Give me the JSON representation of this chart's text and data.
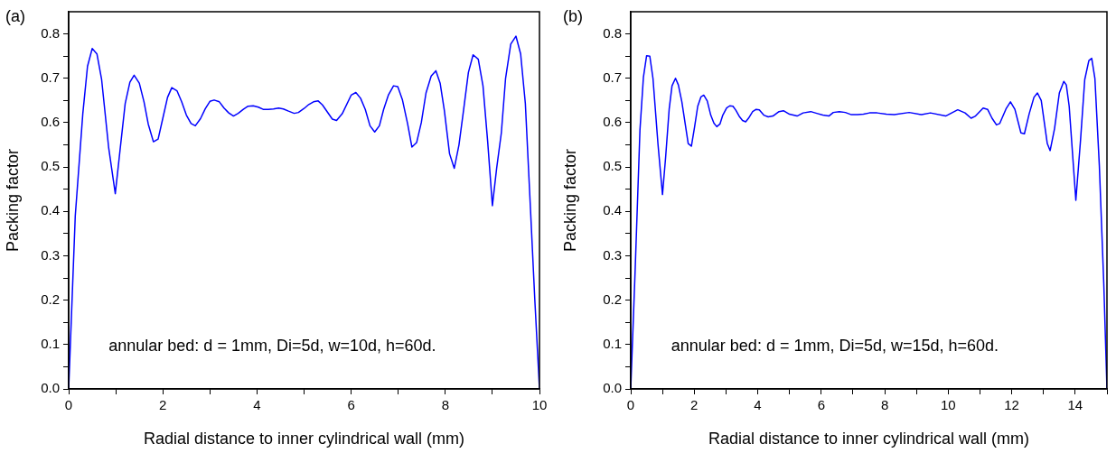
{
  "chart_data": [
    {
      "type": "line",
      "xlabel": "Radial distance to inner cylindrical wall (mm)",
      "ylabel": "Packing factor",
      "annotations": [
        "(a)",
        "annular bed: d = 1mm, Di=5d, w=10d, h=60d."
      ],
      "xlim": [
        0,
        10
      ],
      "xticks": [
        0,
        {
          "value": 1,
          "label": null
        },
        2,
        {
          "value": 3,
          "label": null
        },
        4,
        {
          "value": 5,
          "label": null
        },
        6,
        {
          "value": 7,
          "label": null
        },
        8,
        {
          "value": 9,
          "label": null
        },
        10
      ],
      "ylim": [
        0,
        0.85
      ],
      "yticks": [
        {
          "value": 0,
          "label": "0.0"
        },
        {
          "value": 0.05,
          "label": null
        },
        0.1,
        {
          "value": 0.15,
          "label": null
        },
        0.2,
        {
          "value": 0.25,
          "label": null
        },
        0.3,
        {
          "value": 0.35,
          "label": null
        },
        0.4,
        {
          "value": 0.45,
          "label": null
        },
        0.5,
        {
          "value": 0.55,
          "label": null
        },
        0.6,
        {
          "value": 0.65,
          "label": null
        },
        0.7,
        {
          "value": 0.75,
          "label": null
        },
        0.8
      ],
      "marker": "none",
      "line_style": "solid",
      "series": [
        {
          "color": "#0000ff",
          "x": [
            0,
            0.14,
            0.3,
            0.4,
            0.5,
            0.6,
            0.7,
            0.85,
            0.99,
            1.09,
            1.2,
            1.3,
            1.39,
            1.5,
            1.6,
            1.69,
            1.8,
            1.9,
            2.0,
            2.1,
            2.19,
            2.3,
            2.4,
            2.5,
            2.6,
            2.69,
            2.8,
            2.9,
            3.0,
            3.09,
            3.2,
            3.3,
            3.4,
            3.5,
            3.6,
            3.71,
            3.81,
            3.92,
            4.03,
            4.13,
            4.24,
            4.35,
            4.46,
            4.56,
            4.67,
            4.79,
            4.88,
            5.0,
            5.1,
            5.2,
            5.3,
            5.39,
            5.6,
            5.69,
            5.81,
            6.0,
            6.1,
            6.2,
            6.3,
            6.4,
            6.5,
            6.6,
            6.69,
            6.79,
            6.9,
            6.99,
            7.09,
            7.2,
            7.29,
            7.39,
            7.49,
            7.59,
            7.7,
            7.8,
            7.89,
            7.98,
            8.09,
            8.19,
            8.29,
            8.39,
            8.49,
            8.59,
            8.7,
            8.8,
            8.9,
            9.0,
            9.09,
            9.19,
            9.28,
            9.39,
            9.5,
            9.6,
            9.7,
            9.81,
            9.9,
            10.0
          ],
          "values": [
            0,
            0.39,
            0.62,
            0.727,
            0.767,
            0.755,
            0.697,
            0.543,
            0.44,
            0.537,
            0.643,
            0.691,
            0.707,
            0.689,
            0.647,
            0.597,
            0.557,
            0.563,
            0.61,
            0.657,
            0.679,
            0.672,
            0.647,
            0.617,
            0.598,
            0.593,
            0.609,
            0.631,
            0.648,
            0.651,
            0.647,
            0.633,
            0.622,
            0.615,
            0.621,
            0.63,
            0.637,
            0.638,
            0.635,
            0.63,
            0.63,
            0.631,
            0.633,
            0.631,
            0.626,
            0.621,
            0.623,
            0.632,
            0.641,
            0.647,
            0.649,
            0.64,
            0.608,
            0.605,
            0.62,
            0.662,
            0.668,
            0.655,
            0.63,
            0.593,
            0.579,
            0.593,
            0.63,
            0.662,
            0.683,
            0.681,
            0.651,
            0.597,
            0.545,
            0.555,
            0.6,
            0.667,
            0.705,
            0.717,
            0.689,
            0.627,
            0.53,
            0.497,
            0.55,
            0.63,
            0.713,
            0.753,
            0.743,
            0.683,
            0.557,
            0.413,
            0.497,
            0.577,
            0.7,
            0.777,
            0.795,
            0.755,
            0.643,
            0.403,
            0.203,
            0
          ]
        }
      ]
    },
    {
      "type": "line",
      "xlabel": "Radial distance to inner cylindrical wall (mm)",
      "ylabel": "Packing factor",
      "annotations": [
        "(b)",
        "annular bed: d = 1mm, Di=5d, w=15d, h=60d."
      ],
      "xlim": [
        0,
        15
      ],
      "xticks": [
        0,
        {
          "value": 1,
          "label": null
        },
        2,
        {
          "value": 3,
          "label": null
        },
        4,
        {
          "value": 5,
          "label": null
        },
        6,
        {
          "value": 7,
          "label": null
        },
        8,
        {
          "value": 9,
          "label": null
        },
        10,
        {
          "value": 11,
          "label": null
        },
        12,
        {
          "value": 13,
          "label": null
        },
        14,
        {
          "value": 15,
          "label": null
        }
      ],
      "ylim": [
        0,
        0.85
      ],
      "yticks": [
        {
          "value": 0,
          "label": "0.0"
        },
        {
          "value": 0.05,
          "label": null
        },
        0.1,
        {
          "value": 0.15,
          "label": null
        },
        0.2,
        {
          "value": 0.25,
          "label": null
        },
        0.3,
        {
          "value": 0.35,
          "label": null
        },
        0.4,
        {
          "value": 0.45,
          "label": null
        },
        0.5,
        {
          "value": 0.55,
          "label": null
        },
        0.6,
        {
          "value": 0.65,
          "label": null
        },
        0.7,
        {
          "value": 0.75,
          "label": null
        },
        0.8
      ],
      "marker": "none",
      "line_style": "solid",
      "series": [
        {
          "color": "#0000ff",
          "x": [
            0,
            0.14,
            0.29,
            0.4,
            0.5,
            0.6,
            0.7,
            0.86,
            1.0,
            1.1,
            1.21,
            1.3,
            1.41,
            1.5,
            1.61,
            1.81,
            1.91,
            2.01,
            2.11,
            2.21,
            2.3,
            2.41,
            2.52,
            2.62,
            2.71,
            2.81,
            2.9,
            3.02,
            3.12,
            3.22,
            3.31,
            3.43,
            3.52,
            3.62,
            3.71,
            3.84,
            3.95,
            4.05,
            4.19,
            4.33,
            4.48,
            4.67,
            4.81,
            5.0,
            5.24,
            5.43,
            5.67,
            5.86,
            6.05,
            6.24,
            6.38,
            6.57,
            6.76,
            6.95,
            7.14,
            7.33,
            7.52,
            7.76,
            8.05,
            8.3,
            8.77,
            9.16,
            9.44,
            9.92,
            10.3,
            10.53,
            10.72,
            10.86,
            11.1,
            11.24,
            11.38,
            11.52,
            11.62,
            11.82,
            11.96,
            12.1,
            12.29,
            12.4,
            12.55,
            12.7,
            12.81,
            12.93,
            13.12,
            13.21,
            13.35,
            13.5,
            13.64,
            13.72,
            13.81,
            14.02,
            14.17,
            14.3,
            14.43,
            14.52,
            14.62,
            14.76,
            14.9,
            15.0
          ],
          "values": [
            0,
            0.27,
            0.583,
            0.703,
            0.751,
            0.75,
            0.7,
            0.55,
            0.438,
            0.523,
            0.63,
            0.683,
            0.7,
            0.685,
            0.647,
            0.553,
            0.547,
            0.59,
            0.637,
            0.658,
            0.662,
            0.649,
            0.617,
            0.599,
            0.591,
            0.597,
            0.617,
            0.633,
            0.638,
            0.637,
            0.628,
            0.613,
            0.605,
            0.602,
            0.61,
            0.625,
            0.63,
            0.629,
            0.617,
            0.613,
            0.615,
            0.625,
            0.627,
            0.619,
            0.615,
            0.622,
            0.625,
            0.621,
            0.617,
            0.615,
            0.623,
            0.625,
            0.623,
            0.618,
            0.618,
            0.619,
            0.622,
            0.622,
            0.619,
            0.618,
            0.623,
            0.618,
            0.622,
            0.615,
            0.629,
            0.622,
            0.61,
            0.615,
            0.633,
            0.63,
            0.61,
            0.595,
            0.598,
            0.631,
            0.647,
            0.63,
            0.577,
            0.575,
            0.62,
            0.657,
            0.667,
            0.65,
            0.553,
            0.537,
            0.587,
            0.667,
            0.693,
            0.685,
            0.637,
            0.425,
            0.563,
            0.697,
            0.74,
            0.745,
            0.7,
            0.503,
            0.237,
            0
          ]
        }
      ]
    }
  ]
}
